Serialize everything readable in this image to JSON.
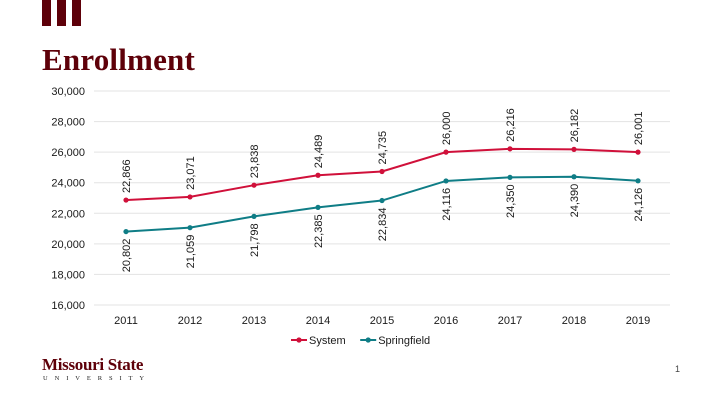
{
  "page": {
    "title": "Enrollment",
    "page_number": "1"
  },
  "logo": {
    "main": "Missouri State",
    "sub": "UNIVERSITY"
  },
  "colors": {
    "brand": "#5e0009",
    "system": "#d0103a",
    "springfield": "#0f7d86",
    "grid": "#e3e3e3",
    "text": "#1a1a1a"
  },
  "chart_data": {
    "type": "line",
    "categories": [
      "2011",
      "2012",
      "2013",
      "2014",
      "2015",
      "2016",
      "2017",
      "2018",
      "2019"
    ],
    "ylim": [
      16000,
      30000
    ],
    "yticks": [
      16000,
      18000,
      20000,
      22000,
      24000,
      26000,
      28000,
      30000
    ],
    "grid": true,
    "legend_position": "bottom",
    "series": [
      {
        "name": "System",
        "color": "#d0103a",
        "values": [
          22866,
          23071,
          23838,
          24489,
          24735,
          26000,
          26216,
          26182,
          26001
        ],
        "labels": [
          "22,866",
          "23,071",
          "23,838",
          "24,489",
          "24,735",
          "26,000",
          "26,216",
          "26,182",
          "26,001"
        ]
      },
      {
        "name": "Springfield",
        "color": "#0f7d86",
        "values": [
          20802,
          21059,
          21798,
          22385,
          22834,
          24116,
          24350,
          24390,
          24126
        ],
        "labels": [
          "20,802",
          "21,059",
          "21,798",
          "22,385",
          "22,834",
          "24,116",
          "24,350",
          "24,390",
          "24,126"
        ]
      }
    ]
  }
}
